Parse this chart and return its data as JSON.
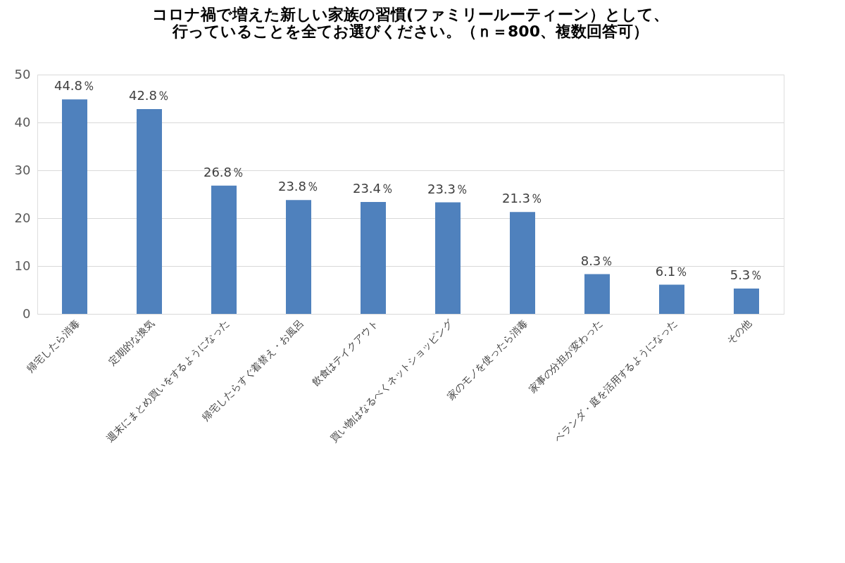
{
  "chart_data": {
    "type": "bar",
    "title": "コロナ禍で増えた新しい家族の習慣(ファミリールーティーン）として、行っていることを全てお選びください。（ｎ＝800、複数回答可）",
    "categories": [
      "帰宅したら消毒",
      "定期的な換気",
      "週末にまとめ買いをするようになった",
      "帰宅したらすぐ着替え・お風呂",
      "飲食はテイクアウト",
      "買い物はなるべくネットショッピング",
      "家のモノを使ったら消毒",
      "家事の分担が変わった",
      "ベランダ・庭を活用するようになった",
      "その他"
    ],
    "values": [
      44.8,
      42.8,
      26.8,
      23.8,
      23.4,
      23.3,
      21.3,
      8.3,
      6.1,
      5.3
    ],
    "value_labels": [
      "44.8％",
      "42.8％",
      "26.8％",
      "23.8％",
      "23.4％",
      "23.3％",
      "21.3％",
      "8.3％",
      "6.1％",
      "5.3％"
    ],
    "color": "#4f81bd",
    "ylim": [
      0,
      50
    ],
    "yticks": [
      0,
      10,
      20,
      30,
      40,
      50
    ],
    "grid": "y"
  }
}
